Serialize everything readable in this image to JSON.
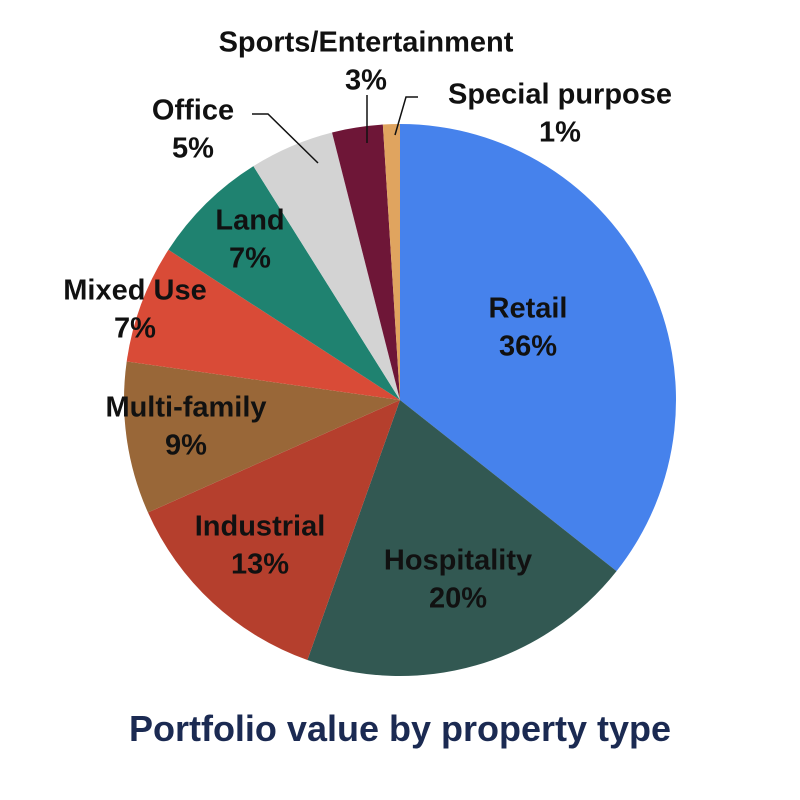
{
  "chart_data": {
    "type": "pie",
    "title": "Portfolio value by property type",
    "slices": [
      {
        "name": "Retail",
        "label": "36%",
        "value": 36,
        "color": "#4682ec"
      },
      {
        "name": "Hospitality",
        "label": "20%",
        "value": 20,
        "color": "#325852"
      },
      {
        "name": "Industrial",
        "label": "13%",
        "value": 13,
        "color": "#b53f2d"
      },
      {
        "name": "Multi-family",
        "label": "9%",
        "value": 9,
        "color": "#996738"
      },
      {
        "name": "Mixed Use",
        "label": "7%",
        "value": 7,
        "color": "#d94b37"
      },
      {
        "name": "Land",
        "label": "7%",
        "value": 7,
        "color": "#1f8270"
      },
      {
        "name": "Office",
        "label": "5%",
        "value": 5,
        "color": "#d3d3d3"
      },
      {
        "name": "Sports/Entertainment",
        "label": "3%",
        "value": 3,
        "color": "#6e1637"
      },
      {
        "name": "Special purpose",
        "label": "1%",
        "value": 1,
        "color": "#e0a45f"
      }
    ],
    "start_angle_deg": 0,
    "direction": "clockwise"
  }
}
